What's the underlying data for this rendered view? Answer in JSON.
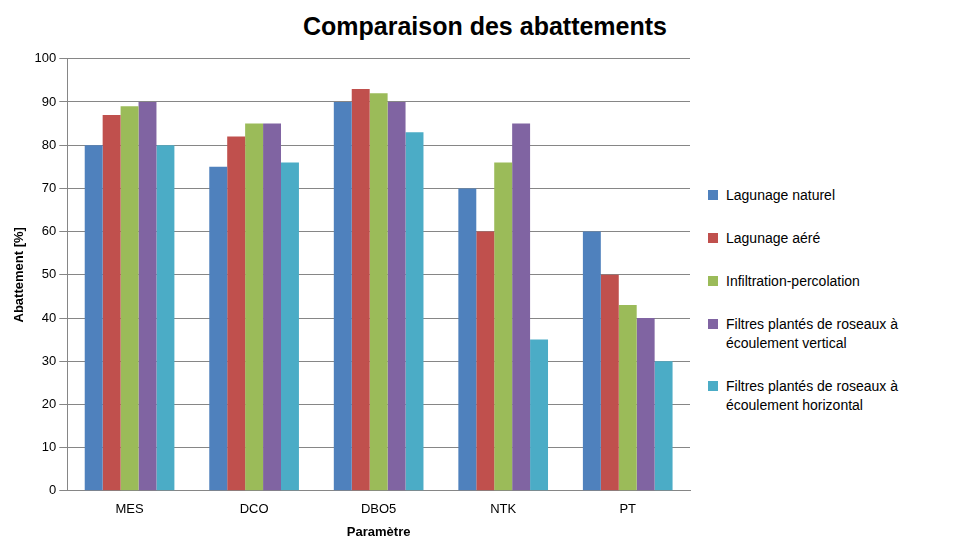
{
  "chart_data": {
    "type": "bar",
    "title": "Comparaison des abattements",
    "x_label": "Paramètre",
    "y_label": "Abattement [%]",
    "categories": [
      "MES",
      "DCO",
      "DBO5",
      "NTK",
      "PT"
    ],
    "series": [
      {
        "name": "Lagunage naturel",
        "color": "#4f81bd",
        "values": [
          80,
          75,
          90,
          70,
          60
        ]
      },
      {
        "name": "Lagunage aéré",
        "color": "#c0504d",
        "values": [
          87,
          82,
          93,
          60,
          50
        ]
      },
      {
        "name": "Infiltration-percolation",
        "color": "#9bbb59",
        "values": [
          89,
          85,
          92,
          76,
          43
        ]
      },
      {
        "name": "Filtres plantés de roseaux à écoulement vertical",
        "color": "#8064a2",
        "values": [
          90,
          85,
          90,
          85,
          40
        ]
      },
      {
        "name": "Filtres plantés de roseaux à écoulement horizontal",
        "color": "#4bacc6",
        "values": [
          80,
          76,
          83,
          35,
          30
        ]
      }
    ],
    "ylim": [
      0,
      100
    ],
    "yticks": [
      0,
      10,
      20,
      30,
      40,
      50,
      60,
      70,
      80,
      90,
      100
    ],
    "grid": true,
    "legend": "right"
  }
}
